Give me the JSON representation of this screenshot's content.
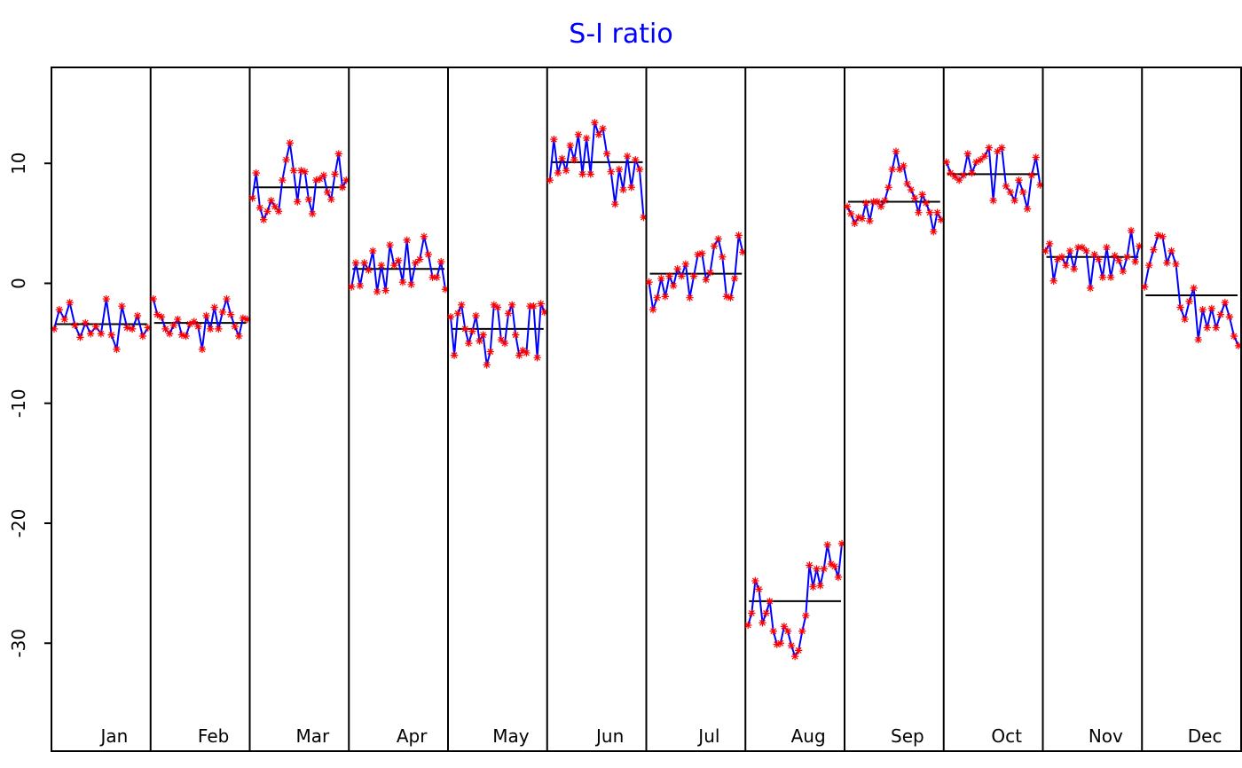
{
  "chart_data": {
    "type": "line",
    "title": "S-I ratio",
    "xlabel": "",
    "ylabel": "",
    "ylim": [
      -39,
      18
    ],
    "yticks": [
      10,
      0,
      -10,
      -20,
      -30
    ],
    "ytick_labels": [
      "10",
      "0",
      "-10",
      "-20",
      "-30"
    ],
    "grid": false,
    "colors": {
      "title": "#0000ff",
      "line": "#0000ff",
      "marker": "#ff0000",
      "mean": "#000000",
      "frame": "#000000"
    },
    "months": [
      {
        "label": "Jan",
        "mean": -3.4,
        "values": [
          -3.8,
          -2.2,
          -3.0,
          -1.6,
          -3.5,
          -4.5,
          -3.3,
          -4.2,
          -3.6,
          -4.2,
          -1.3,
          -4.3,
          -5.5,
          -1.9,
          -3.7,
          -3.8,
          -2.7,
          -4.4,
          -3.7
        ]
      },
      {
        "label": "Feb",
        "mean": -3.3,
        "values": [
          -1.3,
          -2.6,
          -2.8,
          -3.8,
          -4.2,
          -3.5,
          -3.0,
          -4.3,
          -4.4,
          -3.4,
          -3.2,
          -3.6,
          -5.5,
          -2.7,
          -3.8,
          -2.0,
          -3.8,
          -2.4,
          -1.3,
          -2.6,
          -3.6,
          -4.4,
          -2.9,
          -3.0
        ]
      },
      {
        "label": "Mar",
        "mean": 8.0,
        "values": [
          7.1,
          9.2,
          6.3,
          5.3,
          6.0,
          6.9,
          6.4,
          6.0,
          8.6,
          10.3,
          11.7,
          9.4,
          6.8,
          9.4,
          9.3,
          7.0,
          5.8,
          8.6,
          8.7,
          9.0,
          7.6,
          7.0,
          9.1,
          10.8,
          8.0,
          8.6
        ]
      },
      {
        "label": "Apr",
        "mean": 1.2,
        "values": [
          -0.3,
          1.7,
          -0.2,
          1.7,
          1.1,
          2.7,
          -0.7,
          1.5,
          -0.6,
          3.2,
          1.5,
          1.9,
          0.1,
          3.6,
          -0.1,
          1.7,
          2.0,
          3.9,
          2.4,
          0.5,
          0.5,
          1.8,
          -0.5
        ]
      },
      {
        "label": "May",
        "mean": -3.8,
        "values": [
          -2.8,
          -6.0,
          -2.5,
          -1.8,
          -3.8,
          -5.0,
          -4.0,
          -2.7,
          -4.8,
          -4.3,
          -6.8,
          -5.7,
          -1.8,
          -2.0,
          -4.7,
          -5.0,
          -2.5,
          -1.8,
          -4.3,
          -6.0,
          -5.6,
          -5.8,
          -1.9,
          -1.9,
          -6.2,
          -1.7,
          -2.4
        ]
      },
      {
        "label": "Jun",
        "mean": 10.1,
        "values": [
          8.6,
          12.0,
          9.2,
          10.4,
          9.4,
          11.5,
          10.3,
          12.4,
          9.1,
          12.1,
          9.1,
          13.4,
          12.4,
          12.9,
          10.8,
          9.3,
          6.6,
          9.5,
          7.8,
          10.6,
          8.0,
          10.3,
          9.5,
          5.5
        ]
      },
      {
        "label": "Jul",
        "mean": 0.8,
        "values": [
          0.1,
          -2.2,
          -1.2,
          0.4,
          -1.1,
          0.6,
          -0.2,
          1.2,
          0.6,
          1.6,
          -1.2,
          0.6,
          2.4,
          2.5,
          0.3,
          0.9,
          3.1,
          3.7,
          2.2,
          -1.1,
          -1.2,
          0.4,
          4.0,
          2.6
        ]
      },
      {
        "label": "Aug",
        "mean": -26.5,
        "values": [
          -28.5,
          -27.5,
          -24.8,
          -25.5,
          -28.3,
          -27.5,
          -26.5,
          -29.0,
          -30.1,
          -30.0,
          -28.6,
          -29.0,
          -30.2,
          -31.1,
          -30.6,
          -29.0,
          -27.7,
          -23.5,
          -25.3,
          -23.8,
          -25.2,
          -23.8,
          -21.8,
          -23.4,
          -23.6,
          -24.5,
          -21.7
        ]
      },
      {
        "label": "Sep",
        "mean": 6.8,
        "values": [
          6.4,
          5.8,
          5.0,
          5.5,
          5.4,
          6.7,
          5.2,
          6.8,
          6.8,
          6.4,
          6.9,
          8.0,
          9.5,
          11.0,
          9.5,
          9.8,
          8.3,
          7.8,
          7.1,
          5.9,
          7.4,
          6.7,
          5.9,
          4.3,
          5.9,
          5.3
        ]
      },
      {
        "label": "Oct",
        "mean": 9.1,
        "values": [
          10.1,
          9.2,
          8.9,
          8.6,
          9.0,
          10.8,
          9.2,
          10.1,
          10.3,
          10.6,
          11.3,
          6.9,
          11.0,
          11.3,
          8.1,
          7.6,
          6.9,
          8.6,
          7.6,
          6.2,
          9.0,
          10.5,
          8.2
        ]
      },
      {
        "label": "Nov",
        "mean": 2.2,
        "values": [
          2.7,
          3.3,
          0.2,
          2.0,
          2.2,
          1.5,
          2.7,
          1.2,
          3.0,
          3.0,
          2.7,
          -0.4,
          2.4,
          2.0,
          0.5,
          3.0,
          0.5,
          2.3,
          1.9,
          1.0,
          2.2,
          4.4,
          1.8,
          3.1
        ]
      },
      {
        "label": "Dec",
        "mean": -1.0,
        "values": [
          -0.3,
          1.5,
          2.8,
          4.0,
          3.9,
          1.7,
          2.7,
          1.6,
          -2.0,
          -3.0,
          -1.5,
          -0.4,
          -4.7,
          -2.2,
          -3.7,
          -2.1,
          -3.7,
          -2.6,
          -1.6,
          -2.8,
          -4.4,
          -5.2
        ]
      }
    ]
  }
}
